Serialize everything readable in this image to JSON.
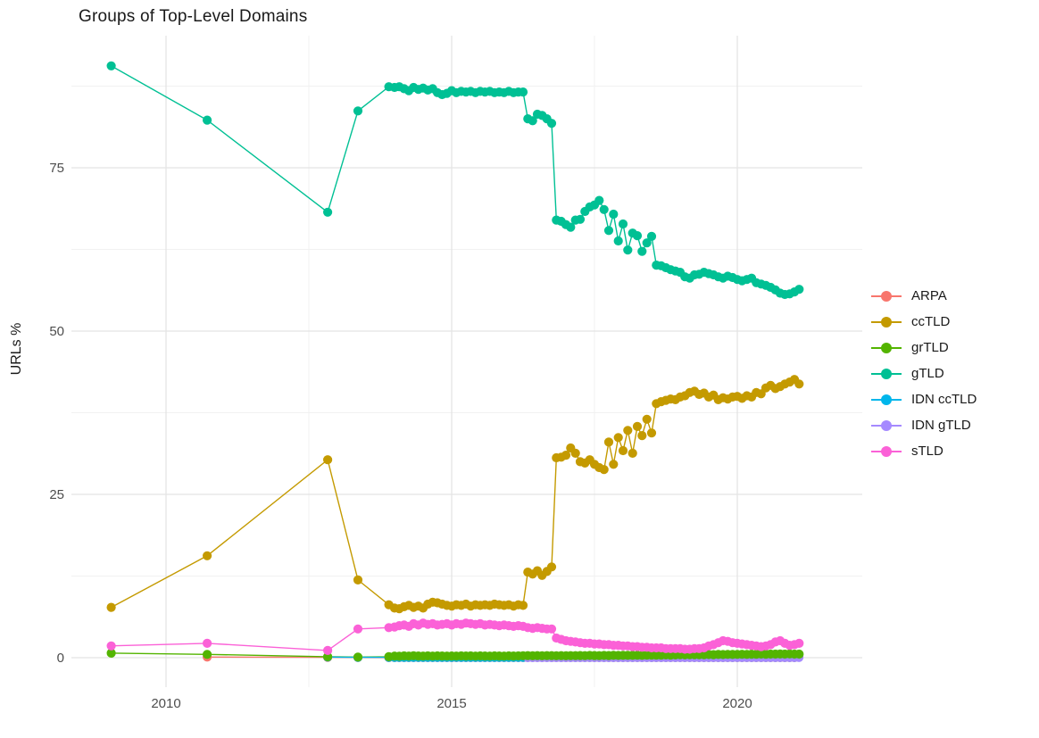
{
  "page": {
    "title": "Groups of Top-Level Domains"
  },
  "axes": {
    "x_tick_labels": [
      "2010",
      "2015",
      "2020"
    ],
    "y_tick_labels": [
      "0",
      "25",
      "50",
      "75"
    ],
    "tick_label_color": "#4d4d4d"
  },
  "chart_data": {
    "type": "line",
    "title": "Groups of Top-Level Domains",
    "xlabel": "",
    "ylabel": "URLs %",
    "x_ticks": [
      2010,
      2015,
      2020
    ],
    "x_minor_ticks": [
      2012.5,
      2017.5
    ],
    "y_ticks": [
      0,
      25,
      50,
      75
    ],
    "y_minor_ticks": [
      12.5,
      37.5,
      62.5,
      87.5
    ],
    "x_range": [
      2008.4,
      2021.9
    ],
    "y_range": [
      -4.5,
      95.5
    ],
    "grid": true,
    "legend_position": "right",
    "monthly_start": 2014.0,
    "monthly_step_years": 0.0833333,
    "series": [
      {
        "name": "ARPA",
        "color": "#F8766D",
        "early": [
          [
            2010.72,
            0.1
          ],
          [
            2012.83,
            0.05
          ],
          [
            2013.36,
            0.03
          ],
          [
            2013.9,
            0.02
          ]
        ],
        "monthly_const": {
          "value": 0.02,
          "from": 2014.0,
          "to": 2021.08
        }
      },
      {
        "name": "ccTLD",
        "color": "#C49A00",
        "early": [
          [
            2009.04,
            7.7
          ],
          [
            2010.72,
            15.6
          ],
          [
            2012.83,
            30.3
          ],
          [
            2013.36,
            11.9
          ],
          [
            2013.9,
            8.1
          ]
        ],
        "monthly_values": [
          7.6,
          7.5,
          7.8,
          8.0,
          7.7,
          7.9,
          7.6,
          8.2,
          8.5,
          8.4,
          8.2,
          8.0,
          7.9,
          8.1,
          8.0,
          8.2,
          7.9,
          8.1,
          8.0,
          8.1,
          8.0,
          8.2,
          8.1,
          8.0,
          8.1,
          7.9,
          8.1,
          8.0,
          13.1,
          12.8,
          13.3,
          12.6,
          13.2,
          13.9,
          30.6,
          30.7,
          31.0,
          32.1,
          31.3,
          30.0,
          29.8,
          30.3,
          29.6,
          29.1,
          28.8,
          33.0,
          29.6,
          33.7,
          31.7,
          34.8,
          31.3,
          35.4,
          34.0,
          36.5,
          34.4,
          38.9,
          39.2,
          39.4,
          39.6,
          39.5,
          39.9,
          40.1,
          40.6,
          40.8,
          40.3,
          40.5,
          39.9,
          40.2,
          39.5,
          39.8,
          39.6,
          39.9,
          40.0,
          39.7,
          40.1,
          39.9,
          40.6,
          40.4,
          41.3,
          41.7,
          41.2,
          41.5,
          41.9,
          42.2,
          42.6,
          41.9
        ]
      },
      {
        "name": "grTLD",
        "color": "#53B400",
        "early": [
          [
            2009.04,
            0.7
          ],
          [
            2010.72,
            0.5
          ],
          [
            2012.83,
            0.15
          ],
          [
            2013.36,
            0.1
          ],
          [
            2013.9,
            0.15
          ]
        ],
        "monthly_values": [
          0.25,
          0.22,
          0.28,
          0.25,
          0.3,
          0.26,
          0.24,
          0.27,
          0.25,
          0.28,
          0.26,
          0.24,
          0.26,
          0.25,
          0.27,
          0.26,
          0.28,
          0.25,
          0.27,
          0.26,
          0.25,
          0.27,
          0.26,
          0.25,
          0.27,
          0.26,
          0.28,
          0.3,
          0.32,
          0.3,
          0.31,
          0.3,
          0.32,
          0.31,
          0.3,
          0.32,
          0.3,
          0.32,
          0.31,
          0.33,
          0.32,
          0.34,
          0.33,
          0.32,
          0.34,
          0.33,
          0.35,
          0.34,
          0.35,
          0.36,
          0.35,
          0.37,
          0.36,
          0.38,
          0.4,
          0.38,
          0.4,
          0.42,
          0.4,
          0.42,
          0.45,
          0.44,
          0.46,
          0.45,
          0.47,
          0.46,
          0.48,
          0.47,
          0.49,
          0.48,
          0.5,
          0.49,
          0.5,
          0.52,
          0.5,
          0.53,
          0.52,
          0.54,
          0.53,
          0.55,
          0.54,
          0.56,
          0.55,
          0.57,
          0.55,
          0.55
        ]
      },
      {
        "name": "gTLD",
        "color": "#00C094",
        "early": [
          [
            2009.04,
            90.6
          ],
          [
            2010.72,
            82.3
          ],
          [
            2012.83,
            68.2
          ],
          [
            2013.36,
            83.7
          ],
          [
            2013.9,
            87.4
          ]
        ],
        "monthly_values": [
          87.3,
          87.4,
          87.1,
          86.8,
          87.3,
          87.0,
          87.2,
          86.9,
          87.1,
          86.5,
          86.2,
          86.4,
          86.8,
          86.5,
          86.7,
          86.6,
          86.7,
          86.5,
          86.7,
          86.6,
          86.7,
          86.5,
          86.6,
          86.5,
          86.7,
          86.5,
          86.6,
          86.6,
          82.5,
          82.2,
          83.2,
          83.0,
          82.5,
          81.8,
          67.0,
          66.8,
          66.3,
          65.9,
          67.0,
          67.1,
          68.3,
          69.0,
          69.3,
          70.0,
          68.6,
          65.4,
          67.9,
          63.8,
          66.4,
          62.4,
          65.0,
          64.6,
          62.2,
          63.5,
          64.5,
          60.1,
          60.0,
          59.7,
          59.4,
          59.2,
          59.0,
          58.3,
          58.1,
          58.6,
          58.7,
          59.0,
          58.8,
          58.6,
          58.3,
          58.1,
          58.4,
          58.2,
          57.9,
          57.7,
          57.9,
          58.1,
          57.4,
          57.2,
          57.0,
          56.7,
          56.3,
          55.8,
          55.6,
          55.7,
          56.0,
          56.4
        ]
      },
      {
        "name": "IDN ccTLD",
        "color": "#00B6EB",
        "early": [
          [
            2012.83,
            0.1
          ],
          [
            2013.36,
            0.06
          ],
          [
            2013.9,
            0.06
          ]
        ],
        "monthly_const": {
          "value": 0.06,
          "from": 2014.0,
          "to": 2021.08
        }
      },
      {
        "name": "IDN gTLD",
        "color": "#A58AFF",
        "early": [],
        "monthly_const": {
          "value": 0.03,
          "from": 2016.33,
          "to": 2021.08
        }
      },
      {
        "name": "sTLD",
        "color": "#FB61D7",
        "early": [
          [
            2009.04,
            1.8
          ],
          [
            2010.72,
            2.2
          ],
          [
            2012.83,
            1.1
          ],
          [
            2013.36,
            4.4
          ],
          [
            2013.9,
            4.6
          ]
        ],
        "monthly_values": [
          4.7,
          4.9,
          5.0,
          4.8,
          5.2,
          5.0,
          5.3,
          5.1,
          5.2,
          5.0,
          5.1,
          5.2,
          5.0,
          5.2,
          5.1,
          5.3,
          5.2,
          5.1,
          5.2,
          5.0,
          5.1,
          5.0,
          4.9,
          5.0,
          4.9,
          4.8,
          4.9,
          4.8,
          4.6,
          4.5,
          4.6,
          4.5,
          4.4,
          4.4,
          3.0,
          2.8,
          2.6,
          2.5,
          2.4,
          2.3,
          2.2,
          2.2,
          2.1,
          2.1,
          2.0,
          2.0,
          1.9,
          1.9,
          1.8,
          1.8,
          1.7,
          1.7,
          1.6,
          1.6,
          1.5,
          1.5,
          1.5,
          1.4,
          1.4,
          1.4,
          1.4,
          1.3,
          1.3,
          1.4,
          1.4,
          1.5,
          1.8,
          2.0,
          2.3,
          2.6,
          2.5,
          2.3,
          2.2,
          2.1,
          2.0,
          1.9,
          1.8,
          1.7,
          1.8,
          2.0,
          2.4,
          2.6,
          2.2,
          1.9,
          2.0,
          2.2
        ]
      }
    ]
  }
}
